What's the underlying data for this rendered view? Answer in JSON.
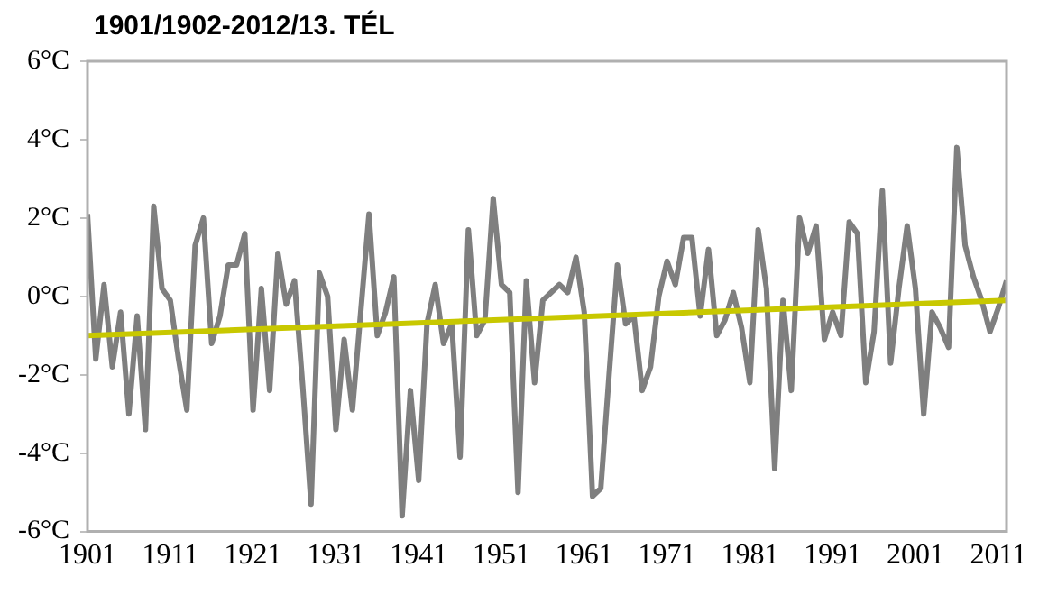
{
  "chart_data": {
    "type": "line",
    "title": "1901/1902-2012/13. TÉL",
    "x": [
      1901,
      1902,
      1903,
      1904,
      1905,
      1906,
      1907,
      1908,
      1909,
      1910,
      1911,
      1912,
      1913,
      1914,
      1915,
      1916,
      1917,
      1918,
      1919,
      1920,
      1921,
      1922,
      1923,
      1924,
      1925,
      1926,
      1927,
      1928,
      1929,
      1930,
      1931,
      1932,
      1933,
      1934,
      1935,
      1936,
      1937,
      1938,
      1939,
      1940,
      1941,
      1942,
      1943,
      1944,
      1945,
      1946,
      1947,
      1948,
      1949,
      1950,
      1951,
      1952,
      1953,
      1954,
      1955,
      1956,
      1957,
      1958,
      1959,
      1960,
      1961,
      1962,
      1963,
      1964,
      1965,
      1966,
      1967,
      1968,
      1969,
      1970,
      1971,
      1972,
      1973,
      1974,
      1975,
      1976,
      1977,
      1978,
      1979,
      1980,
      1981,
      1982,
      1983,
      1984,
      1985,
      1986,
      1987,
      1988,
      1989,
      1990,
      1991,
      1992,
      1993,
      1994,
      1995,
      1996,
      1997,
      1998,
      1999,
      2000,
      2001,
      2002,
      2003,
      2004,
      2005,
      2006,
      2007,
      2008,
      2009,
      2010,
      2011,
      2012
    ],
    "series": [
      {
        "color": "#7f7f7f",
        "values": [
          2.1,
          -1.6,
          0.3,
          -1.8,
          -0.4,
          -3.0,
          -0.5,
          -3.4,
          2.3,
          0.2,
          -0.1,
          -1.6,
          -2.9,
          1.3,
          2.0,
          -1.2,
          -0.5,
          0.8,
          0.8,
          1.6,
          -2.9,
          0.2,
          -2.4,
          1.1,
          -0.2,
          0.4,
          -2.3,
          -5.3,
          0.6,
          0.0,
          -3.4,
          -1.1,
          -2.9,
          -0.4,
          2.1,
          -1.0,
          -0.4,
          0.5,
          -5.6,
          -2.4,
          -4.7,
          -0.7,
          0.3,
          -1.2,
          -0.7,
          -4.1,
          1.7,
          -1.0,
          -0.6,
          2.5,
          0.3,
          0.1,
          -5.0,
          0.4,
          -2.2,
          -0.1,
          0.1,
          0.3,
          0.1,
          1.0,
          -0.4,
          -5.1,
          -4.9,
          -2.0,
          0.8,
          -0.7,
          -0.5,
          -2.4,
          -1.8,
          0.0,
          0.9,
          0.3,
          1.5,
          1.5,
          -0.5,
          1.2,
          -1.0,
          -0.6,
          0.1,
          -0.8,
          -2.2,
          1.7,
          0.2,
          -4.4,
          -0.1,
          -2.4,
          2.0,
          1.1,
          1.8,
          -1.1,
          -0.4,
          -1.0,
          1.9,
          1.6,
          -2.2,
          -0.9,
          2.7,
          -1.7,
          0.2,
          1.8,
          0.2,
          -3.0,
          -0.4,
          -0.8,
          -1.3,
          3.8,
          1.3,
          0.5,
          -0.1,
          -0.9,
          -0.3,
          0.4
        ]
      },
      {
        "type": "line",
        "color": "#c8c800",
        "x": [
          1901,
          2012
        ],
        "values": [
          -1.0,
          -0.1
        ]
      }
    ],
    "xlim": [
      1901,
      2012
    ],
    "xticks": [
      1901,
      1911,
      1921,
      1931,
      1941,
      1951,
      1961,
      1971,
      1981,
      1991,
      2001,
      2011
    ],
    "ylim": [
      -6,
      6
    ],
    "yticks": [
      {
        "value": -6,
        "label": "-6°C"
      },
      {
        "value": -4,
        "label": "-4°C"
      },
      {
        "value": -2,
        "label": "-2°C"
      },
      {
        "value": 0,
        "label": "0°C"
      },
      {
        "value": 2,
        "label": "2°C"
      },
      {
        "value": 4,
        "label": "4°C"
      },
      {
        "value": 6,
        "label": "6°C"
      }
    ],
    "grid": false,
    "legend": false,
    "marker": "none",
    "line_style": "solid"
  }
}
